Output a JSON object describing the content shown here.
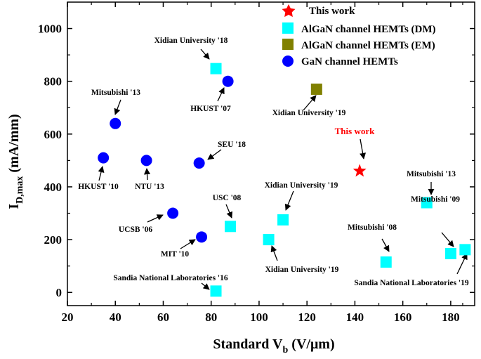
{
  "chart_data": {
    "type": "scatter",
    "xlabel": "Standard V",
    "xlabel_sub": "b",
    "xlabel_unit": " (V/μm)",
    "ylabel": "I",
    "ylabel_sub": "D,max",
    "ylabel_unit": " (mA/mm)",
    "xlim": [
      20,
      190
    ],
    "ylim": [
      -50,
      1100
    ],
    "xticks": [
      20,
      40,
      60,
      80,
      100,
      120,
      140,
      160,
      180
    ],
    "yticks": [
      0,
      200,
      400,
      600,
      800,
      1000
    ],
    "legend": [
      {
        "label": "This work",
        "marker": "star",
        "color": "#ff0000"
      },
      {
        "label": "AlGaN channel HEMTs (DM)",
        "marker": "square",
        "color": "#00ffff"
      },
      {
        "label": "AlGaN channel HEMTs (EM)",
        "marker": "square",
        "color": "#808000"
      },
      {
        "label": "GaN channel HEMTs",
        "marker": "circle",
        "color": "#0000ff"
      }
    ],
    "series": [
      {
        "name": "This work",
        "marker": "star",
        "color": "#ff0000",
        "points": [
          {
            "x": 142,
            "y": 460,
            "label": "This work"
          }
        ]
      },
      {
        "name": "AlGaN channel HEMTs (DM)",
        "marker": "square",
        "color": "#00ffff",
        "points": [
          {
            "x": 82,
            "y": 848,
            "label": "Xidian University '18"
          },
          {
            "x": 88,
            "y": 250,
            "label": "USC '08"
          },
          {
            "x": 104,
            "y": 200,
            "label": "Xidian University '19"
          },
          {
            "x": 110,
            "y": 275,
            "label": "Xidian University '19"
          },
          {
            "x": 82,
            "y": 5,
            "label": "Sandia National Laboratories '16"
          },
          {
            "x": 153,
            "y": 115,
            "label": "Mitsubishi '08"
          },
          {
            "x": 170,
            "y": 340,
            "label": "Mitsubishi '13"
          },
          {
            "x": 180,
            "y": 147,
            "label": "Mitsubishi '09"
          },
          {
            "x": 186,
            "y": 162,
            "label": "Sandia National Laboratories '19"
          }
        ]
      },
      {
        "name": "AlGaN channel HEMTs (EM)",
        "marker": "square",
        "color": "#808000",
        "points": [
          {
            "x": 124,
            "y": 770,
            "label": "Xidian University '19"
          }
        ]
      },
      {
        "name": "GaN channel HEMTs",
        "marker": "circle",
        "color": "#0000ff",
        "points": [
          {
            "x": 35,
            "y": 510,
            "label": "HKUST '10"
          },
          {
            "x": 40,
            "y": 640,
            "label": "Mitsubishi '13"
          },
          {
            "x": 53,
            "y": 500,
            "label": "NTU '13"
          },
          {
            "x": 64,
            "y": 300,
            "label": "UCSB '06"
          },
          {
            "x": 75,
            "y": 490,
            "label": "SEU '18"
          },
          {
            "x": 76,
            "y": 210,
            "label": "MIT '10"
          },
          {
            "x": 87,
            "y": 800,
            "label": "HKUST '07"
          }
        ]
      }
    ]
  }
}
